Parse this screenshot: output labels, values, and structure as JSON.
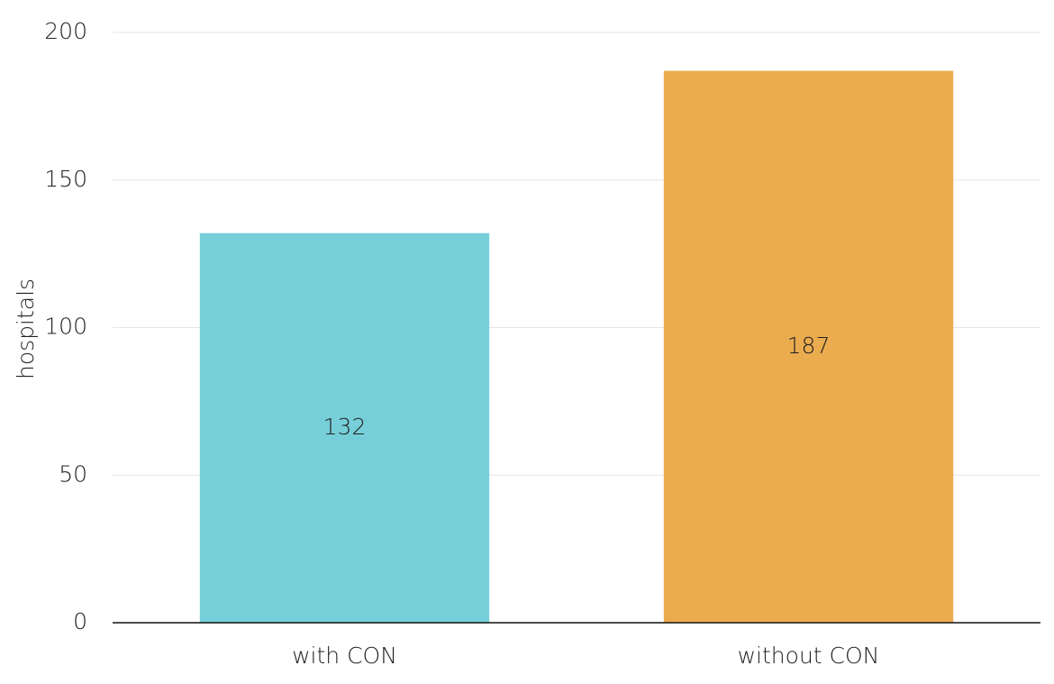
{
  "chart_data": {
    "type": "bar",
    "y_label": "hospitals",
    "categories": [
      "with CON",
      "without CON"
    ],
    "values": [
      132,
      187
    ],
    "colors": [
      "#76cfd8",
      "#ebac4f"
    ],
    "ylim": [
      0,
      200
    ],
    "yticks": [
      0,
      50,
      100,
      150,
      200
    ],
    "grid": true
  }
}
